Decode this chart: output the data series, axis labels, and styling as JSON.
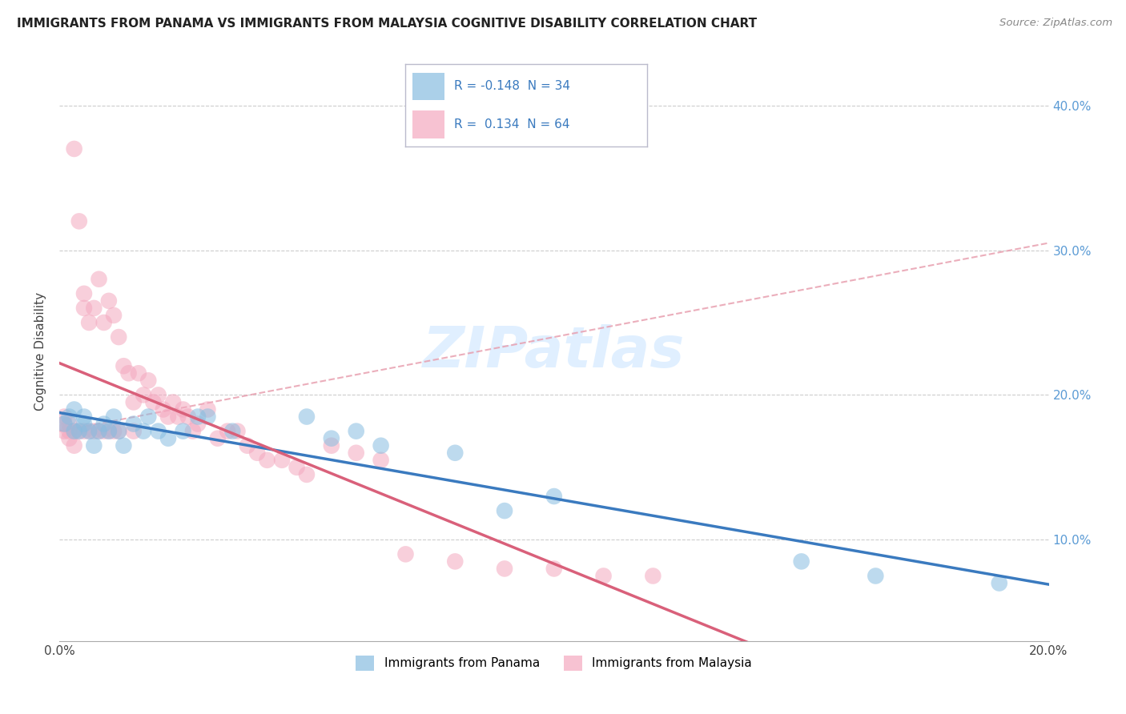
{
  "title": "IMMIGRANTS FROM PANAMA VS IMMIGRANTS FROM MALAYSIA COGNITIVE DISABILITY CORRELATION CHART",
  "source": "Source: ZipAtlas.com",
  "ylabel": "Cognitive Disability",
  "legend_label_1": "Immigrants from Panama",
  "legend_label_2": "Immigrants from Malaysia",
  "r1": -0.148,
  "n1": 34,
  "r2": 0.134,
  "n2": 64,
  "color_panama": "#88bde0",
  "color_malaysia": "#f4a8bf",
  "color_panama_line": "#3a7abf",
  "color_malaysia_line": "#d9607a",
  "color_trend_dashed": "#e8a0b0",
  "xlim": [
    0.0,
    0.2
  ],
  "ylim": [
    0.03,
    0.43
  ],
  "yticks": [
    0.1,
    0.2,
    0.3,
    0.4
  ],
  "panama_x": [
    0.001,
    0.002,
    0.003,
    0.003,
    0.004,
    0.005,
    0.005,
    0.006,
    0.007,
    0.008,
    0.009,
    0.01,
    0.011,
    0.012,
    0.013,
    0.015,
    0.017,
    0.018,
    0.02,
    0.022,
    0.025,
    0.028,
    0.03,
    0.035,
    0.05,
    0.055,
    0.06,
    0.065,
    0.08,
    0.09,
    0.1,
    0.15,
    0.165,
    0.19
  ],
  "panama_y": [
    0.18,
    0.185,
    0.175,
    0.19,
    0.175,
    0.185,
    0.18,
    0.175,
    0.165,
    0.175,
    0.18,
    0.175,
    0.185,
    0.175,
    0.165,
    0.18,
    0.175,
    0.185,
    0.175,
    0.17,
    0.175,
    0.185,
    0.185,
    0.175,
    0.185,
    0.17,
    0.175,
    0.165,
    0.16,
    0.12,
    0.13,
    0.085,
    0.075,
    0.07
  ],
  "malaysia_x": [
    0.001,
    0.001,
    0.001,
    0.002,
    0.002,
    0.002,
    0.003,
    0.003,
    0.003,
    0.004,
    0.004,
    0.005,
    0.005,
    0.005,
    0.006,
    0.006,
    0.007,
    0.007,
    0.008,
    0.008,
    0.009,
    0.009,
    0.01,
    0.01,
    0.011,
    0.011,
    0.012,
    0.012,
    0.013,
    0.014,
    0.015,
    0.015,
    0.016,
    0.017,
    0.018,
    0.019,
    0.02,
    0.021,
    0.022,
    0.023,
    0.024,
    0.025,
    0.026,
    0.027,
    0.028,
    0.03,
    0.032,
    0.034,
    0.036,
    0.038,
    0.04,
    0.042,
    0.045,
    0.048,
    0.05,
    0.055,
    0.06,
    0.065,
    0.07,
    0.08,
    0.09,
    0.1,
    0.11,
    0.12
  ],
  "malaysia_y": [
    0.175,
    0.18,
    0.185,
    0.17,
    0.175,
    0.18,
    0.165,
    0.175,
    0.37,
    0.175,
    0.32,
    0.175,
    0.26,
    0.27,
    0.175,
    0.25,
    0.175,
    0.26,
    0.175,
    0.28,
    0.175,
    0.25,
    0.175,
    0.265,
    0.175,
    0.255,
    0.175,
    0.24,
    0.22,
    0.215,
    0.175,
    0.195,
    0.215,
    0.2,
    0.21,
    0.195,
    0.2,
    0.19,
    0.185,
    0.195,
    0.185,
    0.19,
    0.185,
    0.175,
    0.18,
    0.19,
    0.17,
    0.175,
    0.175,
    0.165,
    0.16,
    0.155,
    0.155,
    0.15,
    0.145,
    0.165,
    0.16,
    0.155,
    0.09,
    0.085,
    0.08,
    0.08,
    0.075,
    0.075
  ],
  "trend_x0": 0.0,
  "trend_y0": 0.175,
  "trend_x1": 0.2,
  "trend_y1": 0.305
}
